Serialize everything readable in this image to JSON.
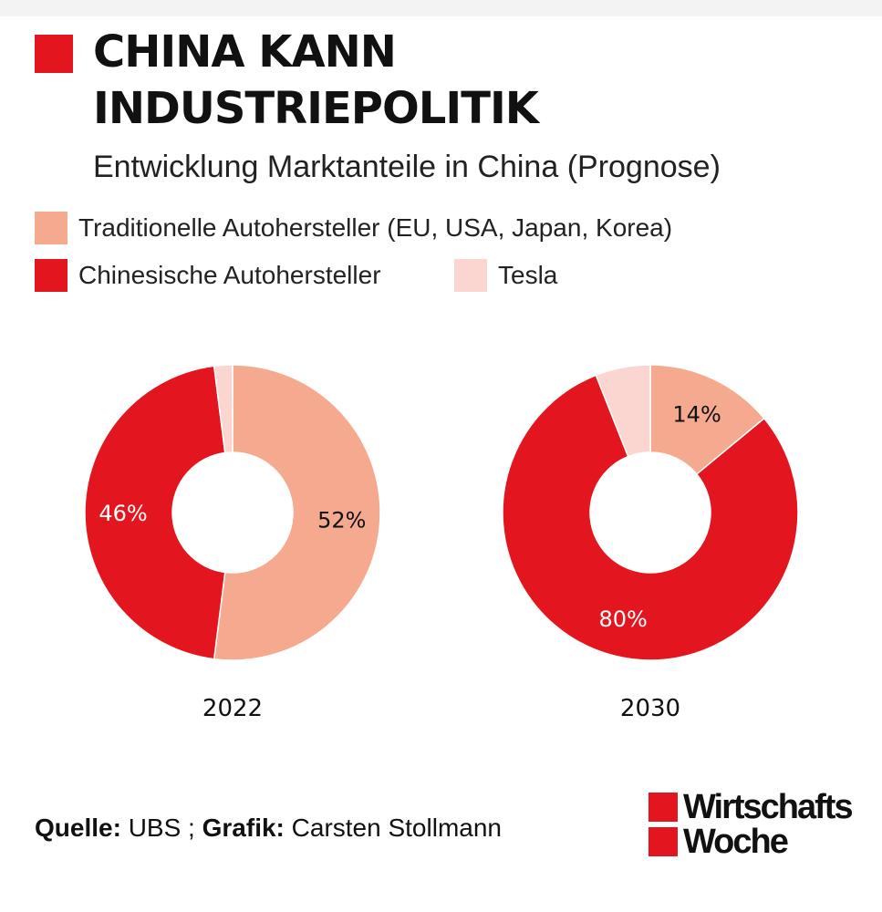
{
  "header": {
    "title": "CHINA KANN INDUSTRIEPOLITIK",
    "subtitle": "Entwicklung Marktanteile in China (Prognose)",
    "accent_color": "#e3151f"
  },
  "legend": [
    {
      "label": "Traditionelle Autohersteller (EU, USA, Japan, Korea)",
      "color": "#f5a98f"
    },
    {
      "label": "Chinesische Autohersteller",
      "color": "#e3151f"
    },
    {
      "label": "Tesla",
      "color": "#fbd5cf"
    }
  ],
  "chart_data": [
    {
      "type": "pie",
      "title": "2022",
      "categories": [
        "Traditionelle Autohersteller (EU, USA, Japan, Korea)",
        "Chinesische Autohersteller",
        "Tesla"
      ],
      "values": [
        52,
        46,
        2
      ],
      "data_labels": [
        "52%",
        "46%",
        ""
      ],
      "colors": [
        "#f5a98f",
        "#e3151f",
        "#fbd5cf"
      ]
    },
    {
      "type": "pie",
      "title": "2030",
      "categories": [
        "Traditionelle Autohersteller (EU, USA, Japan, Korea)",
        "Chinesische Autohersteller",
        "Tesla"
      ],
      "values": [
        14,
        80,
        6
      ],
      "data_labels": [
        "14%",
        "80%",
        ""
      ],
      "colors": [
        "#f5a98f",
        "#e3151f",
        "#fbd5cf"
      ]
    }
  ],
  "footer": {
    "source_label": "Quelle:",
    "source_value": "UBS ;",
    "graphic_label": "Grafik:",
    "graphic_value": "Carsten Stollmann"
  },
  "logo": {
    "line1": "Wirtschafts",
    "line2": "Woche"
  }
}
